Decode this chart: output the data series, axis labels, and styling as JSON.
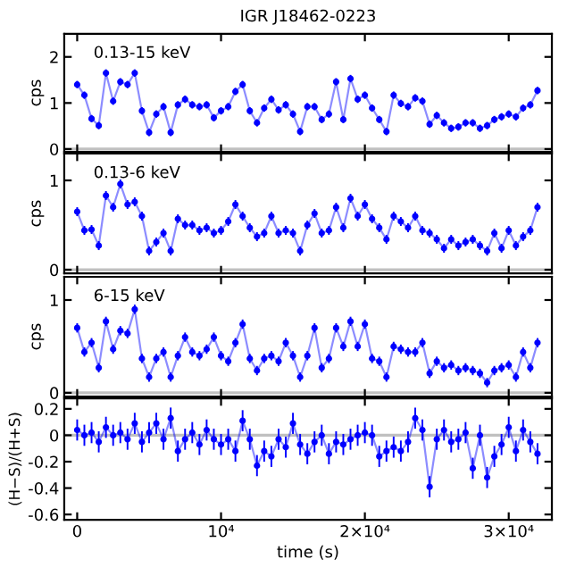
{
  "chart_data": [
    {
      "type": "line",
      "title": "IGR J18462-0223",
      "ylabel": "cps",
      "annotations": [
        "0.13-15 keV"
      ],
      "xlim": [
        -900,
        33000
      ],
      "xticks": [
        {
          "value": 0,
          "label": null
        },
        {
          "value": 10000,
          "label": null
        },
        {
          "value": 20000,
          "label": null
        },
        {
          "value": 30000,
          "label": null
        }
      ],
      "ylim": [
        -0.06,
        2.5
      ],
      "yticks": [
        0,
        1,
        2
      ],
      "tick_labels": "y",
      "marker": "circle",
      "ref_lines": [
        {
          "axis": "y",
          "value": 0,
          "color": "#c0c0c0"
        }
      ],
      "series": [
        {
          "color": "#0000ff",
          "x": [
            0,
            500,
            1000,
            1500,
            2000,
            2500,
            3000,
            3500,
            4000,
            4500,
            5000,
            5500,
            6000,
            6500,
            7000,
            7500,
            8000,
            8500,
            9000,
            9500,
            10000,
            10500,
            11000,
            11500,
            12000,
            12500,
            13000,
            13500,
            14000,
            14500,
            15000,
            15500,
            16000,
            16500,
            17000,
            17500,
            18000,
            18500,
            19000,
            19500,
            20000,
            20500,
            21000,
            21500,
            22000,
            22500,
            23000,
            23500,
            24000,
            24500,
            25000,
            25500,
            26000,
            26500,
            27000,
            27500,
            28000,
            28500,
            29000,
            29500,
            30000,
            30500,
            31000,
            31500,
            32000
          ],
          "values": [
            1.4,
            1.17,
            0.66,
            0.51,
            1.65,
            1.04,
            1.46,
            1.4,
            1.65,
            0.83,
            0.36,
            0.76,
            0.92,
            0.36,
            0.96,
            1.08,
            0.96,
            0.92,
            0.96,
            0.68,
            0.83,
            0.92,
            1.25,
            1.4,
            0.83,
            0.57,
            0.89,
            1.08,
            0.85,
            0.96,
            0.76,
            0.38,
            0.92,
            0.92,
            0.64,
            0.76,
            1.46,
            0.64,
            1.53,
            1.08,
            1.17,
            0.89,
            0.64,
            0.38,
            1.17,
            0.99,
            0.92,
            1.11,
            1.04,
            0.54,
            0.73,
            0.57,
            0.45,
            0.48,
            0.57,
            0.57,
            0.45,
            0.51,
            0.64,
            0.7,
            0.76,
            0.7,
            0.89,
            0.96,
            1.27
          ],
          "errors": [
            0.08,
            0.08,
            0.08,
            0.08,
            0.08,
            0.08,
            0.08,
            0.08,
            0.08,
            0.08,
            0.08,
            0.08,
            0.08,
            0.08,
            0.08,
            0.08,
            0.08,
            0.08,
            0.08,
            0.08,
            0.08,
            0.08,
            0.08,
            0.08,
            0.08,
            0.08,
            0.08,
            0.08,
            0.08,
            0.08,
            0.08,
            0.08,
            0.08,
            0.08,
            0.08,
            0.08,
            0.08,
            0.08,
            0.08,
            0.08,
            0.08,
            0.08,
            0.08,
            0.08,
            0.08,
            0.08,
            0.08,
            0.08,
            0.08,
            0.08,
            0.08,
            0.08,
            0.08,
            0.08,
            0.08,
            0.08,
            0.08,
            0.08,
            0.08,
            0.08,
            0.08,
            0.08,
            0.08,
            0.08,
            0.08
          ]
        }
      ]
    },
    {
      "type": "line",
      "ylabel": "cps",
      "annotations": [
        "0.13-6 keV"
      ],
      "xlim": [
        -900,
        33000
      ],
      "xticks": [
        {
          "value": 0,
          "label": null
        },
        {
          "value": 10000,
          "label": null
        },
        {
          "value": 20000,
          "label": null
        },
        {
          "value": 30000,
          "label": null
        }
      ],
      "ylim": [
        -0.04,
        1.3
      ],
      "yticks": [
        0,
        1
      ],
      "tick_labels": "y",
      "marker": "circle",
      "ref_lines": [
        {
          "axis": "y",
          "value": 0,
          "color": "#c0c0c0"
        }
      ],
      "series": [
        {
          "color": "#0000ff",
          "x": [
            0,
            500,
            1000,
            1500,
            2000,
            2500,
            3000,
            3500,
            4000,
            4500,
            5000,
            5500,
            6000,
            6500,
            7000,
            7500,
            8000,
            8500,
            9000,
            9500,
            10000,
            10500,
            11000,
            11500,
            12000,
            12500,
            13000,
            13500,
            14000,
            14500,
            15000,
            15500,
            16000,
            16500,
            17000,
            17500,
            18000,
            18500,
            19000,
            19500,
            20000,
            20500,
            21000,
            21500,
            22000,
            22500,
            23000,
            23500,
            24000,
            24500,
            25000,
            25500,
            26000,
            26500,
            27000,
            27500,
            28000,
            28500,
            29000,
            29500,
            30000,
            30500,
            31000,
            31500,
            32000
          ],
          "values": [
            0.65,
            0.44,
            0.45,
            0.27,
            0.83,
            0.7,
            0.96,
            0.73,
            0.76,
            0.6,
            0.21,
            0.31,
            0.41,
            0.21,
            0.57,
            0.5,
            0.5,
            0.44,
            0.47,
            0.41,
            0.44,
            0.54,
            0.73,
            0.6,
            0.47,
            0.37,
            0.41,
            0.6,
            0.41,
            0.44,
            0.41,
            0.21,
            0.5,
            0.63,
            0.41,
            0.44,
            0.7,
            0.47,
            0.8,
            0.6,
            0.73,
            0.57,
            0.47,
            0.34,
            0.6,
            0.54,
            0.47,
            0.6,
            0.44,
            0.41,
            0.34,
            0.24,
            0.34,
            0.27,
            0.31,
            0.34,
            0.27,
            0.21,
            0.41,
            0.24,
            0.44,
            0.27,
            0.37,
            0.44,
            0.7
          ],
          "errors": [
            0.05,
            0.05,
            0.05,
            0.05,
            0.05,
            0.05,
            0.05,
            0.05,
            0.05,
            0.05,
            0.05,
            0.05,
            0.05,
            0.05,
            0.05,
            0.05,
            0.05,
            0.05,
            0.05,
            0.05,
            0.05,
            0.05,
            0.05,
            0.05,
            0.05,
            0.05,
            0.05,
            0.05,
            0.05,
            0.05,
            0.05,
            0.05,
            0.05,
            0.05,
            0.05,
            0.05,
            0.05,
            0.05,
            0.05,
            0.05,
            0.05,
            0.05,
            0.05,
            0.05,
            0.05,
            0.05,
            0.05,
            0.05,
            0.05,
            0.05,
            0.05,
            0.05,
            0.05,
            0.05,
            0.05,
            0.05,
            0.05,
            0.05,
            0.05,
            0.05,
            0.05,
            0.05,
            0.05,
            0.05,
            0.05
          ]
        }
      ]
    },
    {
      "type": "line",
      "ylabel": "cps",
      "annotations": [
        "6-15 keV"
      ],
      "xlim": [
        -900,
        33000
      ],
      "xticks": [
        {
          "value": 0,
          "label": null
        },
        {
          "value": 10000,
          "label": null
        },
        {
          "value": 20000,
          "label": null
        },
        {
          "value": 30000,
          "label": null
        }
      ],
      "ylim": [
        -0.04,
        1.25
      ],
      "yticks": [
        0,
        1
      ],
      "tick_labels": "y",
      "marker": "circle",
      "ref_lines": [
        {
          "axis": "y",
          "value": 0,
          "color": "#c0c0c0"
        }
      ],
      "series": [
        {
          "color": "#0000ff",
          "x": [
            0,
            500,
            1000,
            1500,
            2000,
            2500,
            3000,
            3500,
            4000,
            4500,
            5000,
            5500,
            6000,
            6500,
            7000,
            7500,
            8000,
            8500,
            9000,
            9500,
            10000,
            10500,
            11000,
            11500,
            12000,
            12500,
            13000,
            13500,
            14000,
            14500,
            15000,
            15500,
            16000,
            16500,
            17000,
            17500,
            18000,
            18500,
            19000,
            19500,
            20000,
            20500,
            21000,
            21500,
            22000,
            22500,
            23000,
            23500,
            24000,
            24500,
            25000,
            25500,
            26000,
            26500,
            27000,
            27500,
            28000,
            28500,
            29000,
            29500,
            30000,
            30500,
            31000,
            31500,
            32000
          ],
          "values": [
            0.7,
            0.44,
            0.54,
            0.27,
            0.77,
            0.47,
            0.67,
            0.64,
            0.9,
            0.37,
            0.17,
            0.37,
            0.44,
            0.17,
            0.4,
            0.6,
            0.44,
            0.4,
            0.47,
            0.6,
            0.4,
            0.34,
            0.54,
            0.74,
            0.37,
            0.24,
            0.37,
            0.4,
            0.34,
            0.54,
            0.4,
            0.17,
            0.4,
            0.7,
            0.27,
            0.37,
            0.7,
            0.5,
            0.77,
            0.5,
            0.74,
            0.37,
            0.34,
            0.17,
            0.5,
            0.47,
            0.44,
            0.44,
            0.54,
            0.21,
            0.34,
            0.27,
            0.3,
            0.24,
            0.27,
            0.24,
            0.21,
            0.11,
            0.24,
            0.27,
            0.3,
            0.17,
            0.44,
            0.27,
            0.54
          ],
          "errors": [
            0.05,
            0.05,
            0.05,
            0.05,
            0.05,
            0.05,
            0.05,
            0.05,
            0.05,
            0.05,
            0.05,
            0.05,
            0.05,
            0.05,
            0.05,
            0.05,
            0.05,
            0.05,
            0.05,
            0.05,
            0.05,
            0.05,
            0.05,
            0.05,
            0.05,
            0.05,
            0.05,
            0.05,
            0.05,
            0.05,
            0.05,
            0.05,
            0.05,
            0.05,
            0.05,
            0.05,
            0.05,
            0.05,
            0.05,
            0.05,
            0.05,
            0.05,
            0.05,
            0.05,
            0.05,
            0.05,
            0.05,
            0.05,
            0.05,
            0.05,
            0.05,
            0.05,
            0.05,
            0.05,
            0.05,
            0.05,
            0.05,
            0.05,
            0.05,
            0.05,
            0.05,
            0.05,
            0.05,
            0.05,
            0.05
          ]
        }
      ]
    },
    {
      "type": "line",
      "ylabel": "(H−S)/(H+S)",
      "xlabel": "time (s)",
      "xlim": [
        -900,
        33000
      ],
      "xticks": [
        0,
        {
          "value": 10000,
          "label": "10⁴"
        },
        {
          "value": 20000,
          "label": "2×10⁴"
        },
        {
          "value": 30000,
          "label": "3×10⁴"
        }
      ],
      "ylim": [
        -0.64,
        0.28
      ],
      "yticks": [
        -0.6,
        -0.4,
        -0.2,
        0,
        0.2
      ],
      "marker": "circle",
      "ref_lines": [
        {
          "axis": "y",
          "value": 0,
          "color": "#c0c0c0"
        }
      ],
      "series": [
        {
          "color": "#0000ff",
          "x": [
            0,
            500,
            1000,
            1500,
            2000,
            2500,
            3000,
            3500,
            4000,
            4500,
            5000,
            5500,
            6000,
            6500,
            7000,
            7500,
            8000,
            8500,
            9000,
            9500,
            10000,
            10500,
            11000,
            11500,
            12000,
            12500,
            13000,
            13500,
            14000,
            14500,
            15000,
            15500,
            16000,
            16500,
            17000,
            17500,
            18000,
            18500,
            19000,
            19500,
            20000,
            20500,
            21000,
            21500,
            22000,
            22500,
            23000,
            23500,
            24000,
            24500,
            25000,
            25500,
            26000,
            26500,
            27000,
            27500,
            28000,
            28500,
            29000,
            29500,
            30000,
            30500,
            31000,
            31500,
            32000
          ],
          "values": [
            0.04,
            0.0,
            0.02,
            -0.05,
            0.06,
            0.0,
            0.02,
            -0.03,
            0.09,
            -0.05,
            0.02,
            0.09,
            -0.03,
            0.13,
            -0.12,
            -0.03,
            0.02,
            -0.07,
            0.04,
            -0.03,
            -0.07,
            -0.03,
            -0.12,
            0.11,
            -0.03,
            -0.23,
            -0.12,
            -0.16,
            -0.03,
            -0.09,
            0.09,
            -0.07,
            -0.14,
            -0.05,
            0.0,
            -0.14,
            -0.05,
            -0.07,
            -0.03,
            0.0,
            0.02,
            0.0,
            -0.16,
            -0.12,
            -0.09,
            -0.12,
            -0.05,
            0.13,
            0.04,
            -0.39,
            -0.03,
            0.04,
            -0.05,
            -0.03,
            0.02,
            -0.25,
            0.0,
            -0.32,
            -0.16,
            -0.07,
            0.06,
            -0.12,
            0.04,
            -0.05,
            -0.14
          ],
          "errors": [
            0.08,
            0.08,
            0.08,
            0.08,
            0.08,
            0.08,
            0.08,
            0.08,
            0.08,
            0.08,
            0.08,
            0.08,
            0.08,
            0.08,
            0.08,
            0.08,
            0.08,
            0.08,
            0.08,
            0.08,
            0.08,
            0.08,
            0.08,
            0.08,
            0.08,
            0.08,
            0.08,
            0.08,
            0.08,
            0.08,
            0.08,
            0.08,
            0.08,
            0.08,
            0.08,
            0.08,
            0.08,
            0.08,
            0.08,
            0.08,
            0.08,
            0.08,
            0.08,
            0.08,
            0.08,
            0.08,
            0.08,
            0.08,
            0.08,
            0.08,
            0.08,
            0.08,
            0.08,
            0.08,
            0.08,
            0.08,
            0.08,
            0.08,
            0.08,
            0.08,
            0.08,
            0.08,
            0.08,
            0.08,
            0.08
          ]
        }
      ]
    }
  ]
}
